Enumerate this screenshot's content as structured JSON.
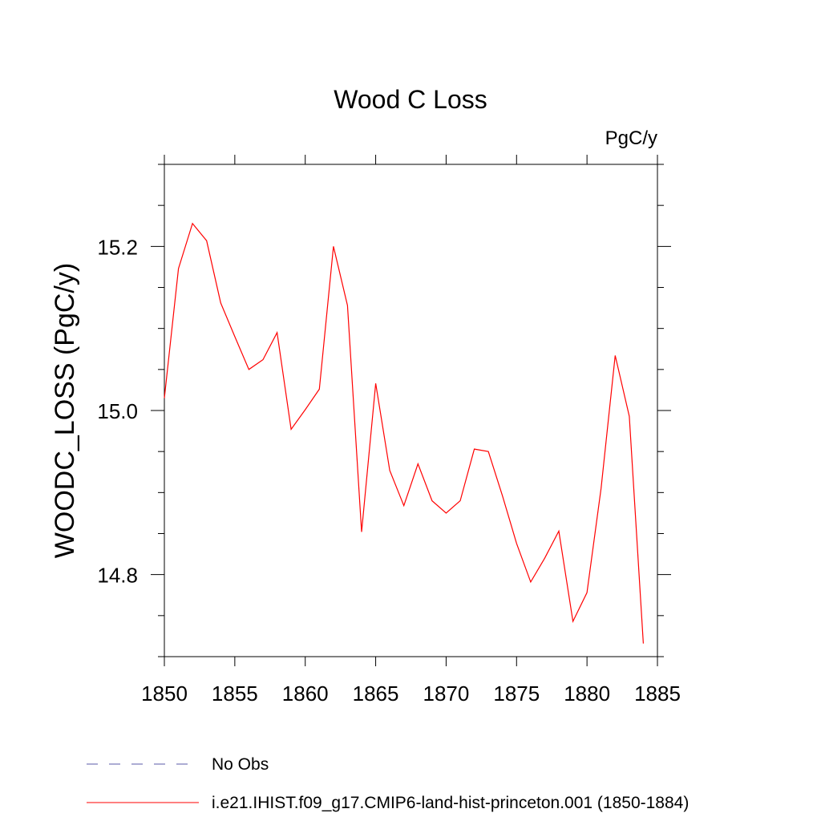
{
  "chart_data": {
    "type": "line",
    "title": "Wood C Loss",
    "units_label": "PgC/y",
    "ylabel": "WOODC_LOSS  (PgC/y)",
    "xlabel": "",
    "xlim": [
      1850,
      1885
    ],
    "ylim": [
      14.7,
      15.3
    ],
    "x_ticks": [
      1850,
      1855,
      1860,
      1865,
      1870,
      1875,
      1880,
      1885
    ],
    "y_ticks": [
      14.8,
      15.0,
      15.2
    ],
    "x_tick_labels": [
      "1850",
      "1855",
      "1860",
      "1865",
      "1870",
      "1875",
      "1880",
      "1885"
    ],
    "y_tick_labels": [
      "14.8",
      "15.0",
      "15.2"
    ],
    "grid": false,
    "series": [
      {
        "name": "i.e21.IHIST.f09_g17.CMIP6-land-hist-princeton.001 (1850-1884)",
        "color": "#ff0000",
        "x": [
          1850,
          1851,
          1852,
          1853,
          1854,
          1855,
          1856,
          1857,
          1858,
          1859,
          1860,
          1861,
          1862,
          1863,
          1864,
          1865,
          1866,
          1867,
          1868,
          1869,
          1870,
          1871,
          1872,
          1873,
          1874,
          1875,
          1876,
          1877,
          1878,
          1879,
          1880,
          1881,
          1882,
          1883,
          1884
        ],
        "values": [
          15.015,
          15.173,
          15.228,
          15.207,
          15.131,
          15.09,
          15.05,
          15.062,
          15.095,
          14.977,
          15.001,
          15.026,
          15.2,
          15.128,
          14.852,
          15.033,
          14.927,
          14.884,
          14.935,
          14.89,
          14.875,
          14.89,
          14.953,
          14.95,
          14.896,
          14.838,
          14.791,
          14.82,
          14.853,
          14.743,
          14.778,
          14.905,
          15.067,
          14.993,
          14.716
        ]
      }
    ],
    "legend": {
      "placement": "bottom",
      "entries": [
        {
          "label": "No Obs",
          "style": "dashed",
          "color": "#5a5aa8"
        },
        {
          "label": "i.e21.IHIST.f09_g17.CMIP6-land-hist-princeton.001 (1850-1884)",
          "style": "solid",
          "color": "#ff0000"
        }
      ]
    }
  }
}
